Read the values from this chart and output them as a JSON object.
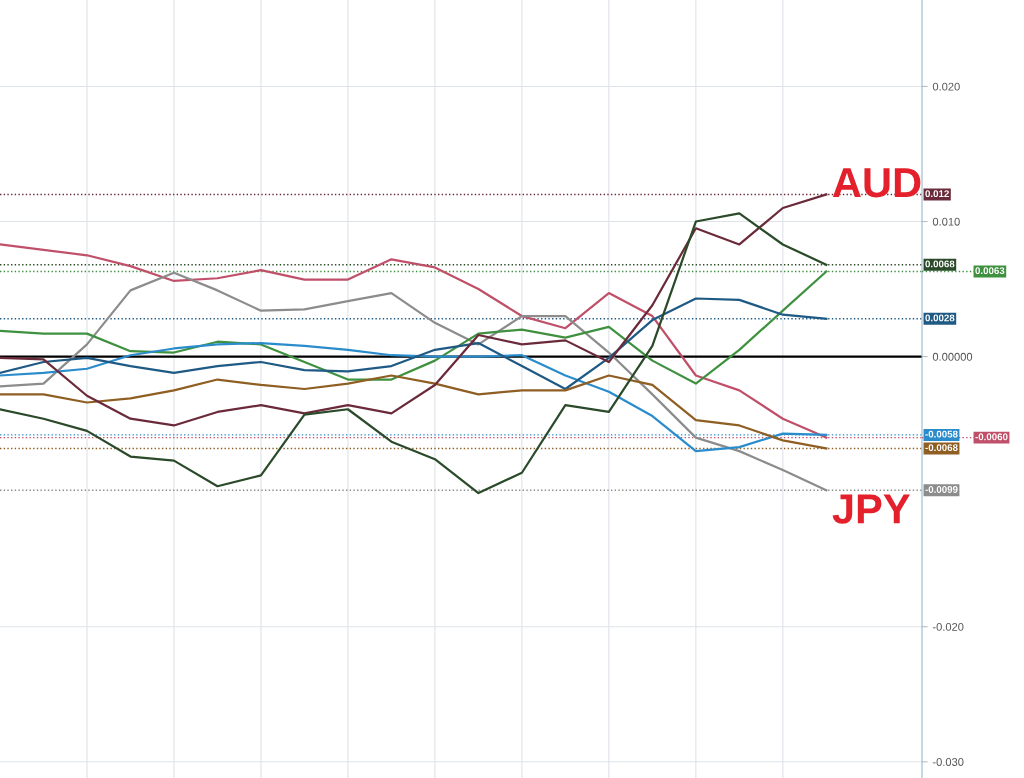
{
  "chart_data": {
    "type": "line",
    "categories": [
      null,
      null,
      null,
      null,
      null,
      null,
      null,
      null,
      null,
      null,
      null,
      null,
      null,
      null,
      null,
      null,
      null,
      null,
      null,
      null
    ],
    "series": [
      {
        "color": "#c0506a",
        "values": [
          0.0083,
          0.0079,
          0.0075,
          0.0067,
          0.0056,
          0.0058,
          0.0064,
          0.0057,
          0.0057,
          0.0072,
          0.0066,
          0.005,
          0.003,
          0.0021,
          0.0047,
          0.003,
          -0.0014,
          -0.0025,
          -0.0046,
          -0.006
        ]
      },
      {
        "name": "JPY",
        "color": "#8c8c8c",
        "values": [
          -0.0022,
          -0.002,
          0.0009,
          0.0049,
          0.0062,
          0.0049,
          0.0034,
          0.0035,
          0.0041,
          0.0047,
          0.0025,
          0.0009,
          0.003,
          0.003,
          0.0003,
          -0.0028,
          -0.006,
          -0.007,
          -0.0084,
          -0.0099
        ]
      },
      {
        "color": "#3f9140",
        "values": [
          0.0019,
          0.0017,
          0.0017,
          0.0004,
          0.0003,
          0.0011,
          0.0009,
          -0.0004,
          -0.0017,
          -0.0017,
          -0.0003,
          0.0017,
          0.002,
          0.0014,
          0.0022,
          -0.0003,
          -0.002,
          0.0005,
          0.0034,
          0.0063
        ]
      },
      {
        "color": "#2b8ccc",
        "values": [
          -0.0014,
          -0.0012,
          -0.0009,
          0.0001,
          0.0006,
          0.0009,
          0.001,
          0.0008,
          0.0005,
          0.0001,
          0.0,
          0.0,
          0.0001,
          -0.0014,
          -0.0026,
          -0.0044,
          -0.007,
          -0.0067,
          -0.0057,
          -0.0058
        ]
      },
      {
        "color": "#1f5a85",
        "values": [
          -0.0012,
          -0.0004,
          -0.0001,
          -0.0007,
          -0.0012,
          -0.0007,
          -0.0004,
          -0.001,
          -0.0011,
          -0.0007,
          0.0005,
          0.001,
          -0.0007,
          -0.0024,
          -0.0001,
          0.0027,
          0.0043,
          0.0042,
          0.0031,
          0.0028
        ]
      },
      {
        "color": "#8f5e22",
        "values": [
          -0.0028,
          -0.0028,
          -0.0034,
          -0.0031,
          -0.0025,
          -0.0017,
          -0.0021,
          -0.0024,
          -0.002,
          -0.0014,
          -0.002,
          -0.0028,
          -0.0025,
          -0.0025,
          -0.0014,
          -0.0021,
          -0.0047,
          -0.0051,
          -0.0062,
          -0.0068
        ]
      },
      {
        "name": "AUD",
        "color": "#6b2a3a",
        "values": [
          -0.0001,
          -0.0002,
          -0.0029,
          -0.0046,
          -0.0051,
          -0.0041,
          -0.0036,
          -0.0042,
          -0.0036,
          -0.0042,
          -0.0021,
          0.0016,
          0.0009,
          0.0012,
          -0.0004,
          0.0038,
          0.0095,
          0.0083,
          0.011,
          0.012
        ]
      },
      {
        "color": "#2a4a2a",
        "values": [
          -0.0039,
          -0.0046,
          -0.0055,
          -0.0074,
          -0.0077,
          -0.0096,
          -0.0088,
          -0.0043,
          -0.0039,
          -0.0063,
          -0.0076,
          -0.0101,
          -0.0086,
          -0.0036,
          -0.0041,
          0.0008,
          0.01,
          0.0106,
          0.0083,
          0.0068
        ]
      }
    ],
    "ylim": [
      -0.0312,
      0.0264
    ],
    "yticks": [
      {
        "value": 0.02,
        "label": "0.020"
      },
      {
        "value": 0.01,
        "label": "0.010"
      },
      {
        "value": 0,
        "label": "0.00000"
      },
      {
        "value": -0.02,
        "label": "-0.020"
      },
      {
        "value": -0.03,
        "label": "-0.030"
      }
    ],
    "legend": "right",
    "grid": true,
    "line_style": "solid",
    "ref_lines": [
      {
        "axis": "y",
        "value": 0,
        "color": "#000000",
        "line_style": "solid"
      },
      {
        "axis": "y",
        "value": 0.012,
        "label": "0.012",
        "color": "#6b2a3a",
        "line_style": "dotted"
      },
      {
        "axis": "y",
        "value": 0.0068,
        "label": "0.0068",
        "color": "#2a4a2a",
        "line_style": "dotted"
      },
      {
        "axis": "y",
        "value": 0.0063,
        "label": "0.0063",
        "color": "#3f9140",
        "line_style": "dotted"
      },
      {
        "axis": "y",
        "value": 0.0028,
        "label": "0.0028",
        "color": "#1f5a85",
        "line_style": "dotted"
      },
      {
        "axis": "y",
        "value": -0.0058,
        "label": "-0.0058",
        "color": "#2b8ccc",
        "line_style": "dotted"
      },
      {
        "axis": "y",
        "value": -0.006,
        "label": "-0.0060",
        "color": "#c0506a",
        "line_style": "dotted"
      },
      {
        "axis": "y",
        "value": -0.0068,
        "label": "-0.0068",
        "color": "#8f5e22",
        "line_style": "dotted"
      },
      {
        "axis": "y",
        "value": -0.0099,
        "label": "-0.0099",
        "color": "#8c8c8c",
        "line_style": "dotted"
      }
    ]
  }
}
